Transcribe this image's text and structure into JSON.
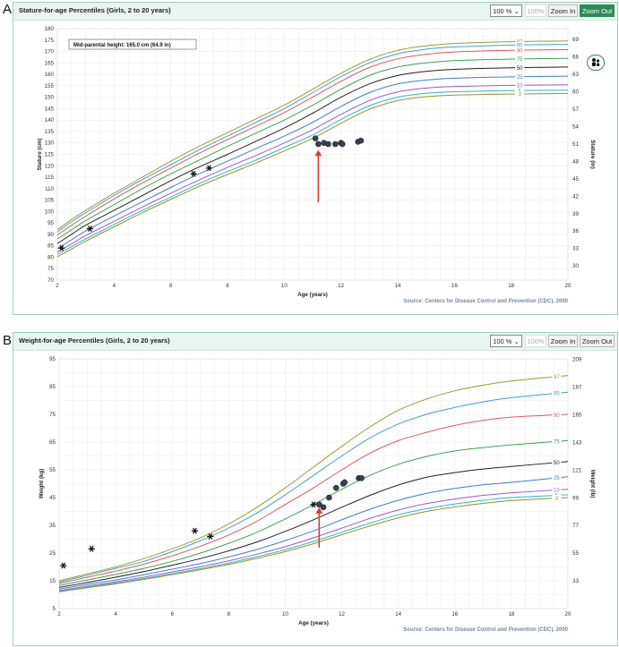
{
  "panels": [
    {
      "letter": "A",
      "title": "Stature-for-age Percentiles (Girls, 2 to 20 years)",
      "zoom_select": "100 % ⌄",
      "zoom_reset": "100%",
      "zoom_in": "Zoom In",
      "zoom_out": "Zoom Out",
      "annotation": "Mid-parental height: 165.0 cm (64.9 in)",
      "source": "Source: Centers for Disease Control and Prevention (CDC), 2000",
      "family_icon": "family-icon"
    },
    {
      "letter": "B",
      "title": "Weight-for-age Percentiles (Girls, 2 to 20 years)",
      "zoom_select": "100 % ⌄",
      "zoom_reset": "100%",
      "zoom_in": "Zoom In",
      "zoom_out": "Zoom Out",
      "source": "Source: Centers for Disease Control and Prevention (CDC), 2000"
    }
  ],
  "chart_data": [
    {
      "type": "line",
      "title": "Stature-for-age Percentiles (Girls, 2 to 20 years)",
      "xlabel": "Age (years)",
      "ylabel": "Stature (cm)",
      "y2label": "Stature (in)",
      "xlim": [
        2,
        20
      ],
      "ylim": [
        70,
        180
      ],
      "xticks": [
        2,
        4,
        6,
        8,
        10,
        12,
        14,
        16,
        18,
        20
      ],
      "yticks": [
        70,
        75,
        80,
        85,
        90,
        95,
        100,
        105,
        110,
        115,
        120,
        125,
        130,
        135,
        140,
        145,
        150,
        155,
        160,
        165,
        170,
        175,
        180
      ],
      "y2ticks": [
        30,
        33,
        36,
        39,
        42,
        45,
        48,
        51,
        54,
        57,
        60,
        63,
        66,
        69
      ],
      "x": [
        2,
        2.5,
        3,
        4,
        5,
        6,
        7,
        8,
        9,
        10,
        11,
        12,
        13,
        14,
        15,
        16,
        18,
        20
      ],
      "series": [
        {
          "name": "97",
          "color": "#a19a2c",
          "values": [
            92.0,
            96.5,
            100.5,
            108.0,
            115.0,
            122.0,
            128.5,
            134.5,
            140.5,
            146.5,
            153.5,
            160.5,
            166.5,
            170.5,
            172.5,
            173.5,
            174.3,
            174.6
          ]
        },
        {
          "name": "95",
          "color": "#3aa1d8",
          "values": [
            91.0,
            95.5,
            99.5,
            107.0,
            114.0,
            120.5,
            127.0,
            133.0,
            139.0,
            145.0,
            152.0,
            159.0,
            165.0,
            169.0,
            171.0,
            172.0,
            172.8,
            173.1
          ]
        },
        {
          "name": "90",
          "color": "#e0585c",
          "values": [
            89.7,
            94.0,
            98.0,
            105.5,
            112.5,
            119.0,
            125.5,
            131.5,
            137.3,
            143.3,
            150.0,
            157.0,
            163.0,
            166.8,
            168.8,
            169.8,
            170.5,
            170.8
          ]
        },
        {
          "name": "75",
          "color": "#3ea34b",
          "values": [
            88.0,
            92.0,
            96.0,
            103.0,
            110.0,
            116.5,
            122.5,
            128.5,
            134.3,
            140.0,
            146.5,
            153.5,
            159.5,
            163.2,
            165.0,
            166.0,
            166.7,
            167.0
          ]
        },
        {
          "name": "50",
          "color": "#222222",
          "values": [
            86.0,
            90.0,
            94.0,
            100.5,
            107.0,
            113.5,
            119.5,
            125.0,
            130.7,
            136.5,
            143.0,
            150.0,
            155.8,
            159.5,
            161.3,
            162.2,
            162.9,
            163.2
          ]
        },
        {
          "name": "25",
          "color": "#3b7fd0",
          "values": [
            83.8,
            87.6,
            91.5,
            98.0,
            104.3,
            110.5,
            116.5,
            122.0,
            127.5,
            133.0,
            139.0,
            146.0,
            152.0,
            155.8,
            157.5,
            158.3,
            158.9,
            159.2
          ]
        },
        {
          "name": "10",
          "color": "#9b59d0",
          "values": [
            82.3,
            85.8,
            89.5,
            95.7,
            102.0,
            108.0,
            113.8,
            119.3,
            124.5,
            130.0,
            135.8,
            142.5,
            148.5,
            152.3,
            154.0,
            154.7,
            155.2,
            155.4
          ]
        },
        {
          "name": "5",
          "color": "#2fb5c6",
          "values": [
            81.2,
            84.6,
            88.0,
            94.3,
            100.5,
            106.3,
            112.2,
            117.5,
            122.5,
            128.0,
            133.5,
            140.3,
            146.3,
            150.0,
            151.7,
            152.4,
            152.9,
            153.1
          ]
        },
        {
          "name": "3",
          "color": "#9a8f2d",
          "values": [
            80.2,
            83.6,
            87.0,
            93.3,
            99.5,
            105.3,
            111.0,
            116.2,
            121.2,
            126.5,
            132.0,
            138.6,
            144.7,
            148.5,
            150.2,
            150.9,
            151.4,
            151.6
          ]
        }
      ],
      "right_labels": [
        "97",
        "95",
        "90",
        "75",
        "50",
        "25",
        "10",
        "5",
        "3"
      ],
      "observations_star": [
        [
          2.15,
          84.0
        ],
        [
          3.15,
          92.5
        ],
        [
          6.8,
          116.5
        ],
        [
          7.35,
          119.0
        ]
      ],
      "observations_dot": [
        [
          11.1,
          132.0
        ],
        [
          11.2,
          129.5
        ],
        [
          11.4,
          130.0
        ],
        [
          11.55,
          129.5
        ],
        [
          11.8,
          129.5
        ],
        [
          12.0,
          130.0
        ],
        [
          12.05,
          129.5
        ],
        [
          12.6,
          130.5
        ],
        [
          12.7,
          131.0
        ]
      ],
      "arrow_tip": [
        11.2,
        127.0
      ],
      "arrow_tail": [
        11.2,
        104.0
      ],
      "source": "Source: Centers for Disease Control and Prevention (CDC), 2000"
    },
    {
      "type": "line",
      "title": "Weight-for-age Percentiles (Girls, 2 to 20 years)",
      "xlabel": "Age (years)",
      "ylabel": "Weight (kg)",
      "y2label": "Weight (lb)",
      "xlim": [
        2,
        20
      ],
      "ylim": [
        5,
        95
      ],
      "xticks": [
        2,
        4,
        6,
        8,
        10,
        12,
        14,
        16,
        18,
        20
      ],
      "yticks": [
        5,
        15,
        25,
        35,
        45,
        55,
        65,
        75,
        85,
        95
      ],
      "y2ticks": [
        33,
        55,
        77,
        99,
        121,
        143,
        165,
        187,
        209
      ],
      "x": [
        2,
        3,
        4,
        5,
        6,
        7,
        8,
        9,
        10,
        11,
        12,
        13,
        14,
        15,
        16,
        17,
        18,
        20
      ],
      "series": [
        {
          "name": "97",
          "color": "#a19a2c",
          "values": [
            15.0,
            17.5,
            20.0,
            23.0,
            26.5,
            30.5,
            35.5,
            41.5,
            48.5,
            56.0,
            63.5,
            70.5,
            76.5,
            80.5,
            83.5,
            85.5,
            87.0,
            89.0
          ]
        },
        {
          "name": "95",
          "color": "#3aa1d8",
          "values": [
            14.5,
            17.0,
            19.5,
            22.0,
            25.5,
            29.5,
            34.0,
            39.5,
            46.0,
            53.0,
            60.0,
            66.5,
            71.5,
            75.0,
            77.5,
            79.5,
            81.0,
            83.0
          ]
        },
        {
          "name": "90",
          "color": "#e0585c",
          "values": [
            14.0,
            16.3,
            18.5,
            21.0,
            24.0,
            27.5,
            31.5,
            36.5,
            42.5,
            48.5,
            55.0,
            61.0,
            65.5,
            68.5,
            71.0,
            72.8,
            74.0,
            75.0
          ]
        },
        {
          "name": "75",
          "color": "#3ea34b",
          "values": [
            13.3,
            15.3,
            17.3,
            19.5,
            22.0,
            25.0,
            28.5,
            32.5,
            37.3,
            42.5,
            48.0,
            53.0,
            57.0,
            59.8,
            61.8,
            63.0,
            64.0,
            65.5
          ]
        },
        {
          "name": "50",
          "color": "#222222",
          "values": [
            12.6,
            14.4,
            16.3,
            18.3,
            20.6,
            23.0,
            25.8,
            29.0,
            32.8,
            37.0,
            41.5,
            45.8,
            49.5,
            52.3,
            54.0,
            55.3,
            56.2,
            58.0
          ]
        },
        {
          "name": "25",
          "color": "#3b7fd0",
          "values": [
            12.0,
            13.7,
            15.3,
            17.2,
            19.2,
            21.2,
            23.6,
            26.3,
            29.5,
            33.0,
            37.0,
            40.8,
            44.0,
            46.5,
            48.3,
            49.6,
            50.5,
            52.5
          ]
        },
        {
          "name": "10",
          "color": "#9b59d0",
          "values": [
            11.5,
            13.1,
            14.6,
            16.3,
            18.2,
            20.1,
            22.2,
            24.6,
            27.3,
            30.5,
            34.0,
            37.5,
            40.5,
            42.8,
            44.5,
            45.8,
            46.7,
            48.0
          ]
        },
        {
          "name": "5",
          "color": "#2fb5c6",
          "values": [
            11.2,
            12.7,
            14.2,
            15.8,
            17.6,
            19.4,
            21.4,
            23.7,
            26.2,
            29.2,
            32.5,
            35.8,
            38.8,
            41.0,
            42.7,
            44.0,
            45.0,
            46.0
          ]
        },
        {
          "name": "3",
          "color": "#9a8f2d",
          "values": [
            11.0,
            12.5,
            13.9,
            15.5,
            17.2,
            19.0,
            20.9,
            23.1,
            25.5,
            28.4,
            31.6,
            34.8,
            37.7,
            40.0,
            41.6,
            42.9,
            43.9,
            45.0
          ]
        }
      ],
      "right_labels": [
        "97",
        "95",
        "90",
        "75",
        "50",
        "25",
        "10",
        "5",
        "3"
      ],
      "observations_star": [
        [
          2.15,
          20.5
        ],
        [
          3.15,
          26.5
        ],
        [
          6.8,
          33.0
        ],
        [
          7.35,
          31.0
        ],
        [
          11.0,
          42.5
        ]
      ],
      "observations_dot": [
        [
          11.2,
          42.5
        ],
        [
          11.35,
          41.5
        ],
        [
          11.55,
          45.0
        ],
        [
          11.8,
          48.5
        ],
        [
          12.05,
          50.0
        ],
        [
          12.1,
          50.5
        ],
        [
          12.6,
          52.0
        ],
        [
          12.7,
          52.0
        ]
      ],
      "arrow_tip": [
        11.2,
        41.5
      ],
      "arrow_tail": [
        11.2,
        27.0
      ],
      "source": "Source: Centers for Disease Control and Prevention (CDC), 2000"
    }
  ]
}
